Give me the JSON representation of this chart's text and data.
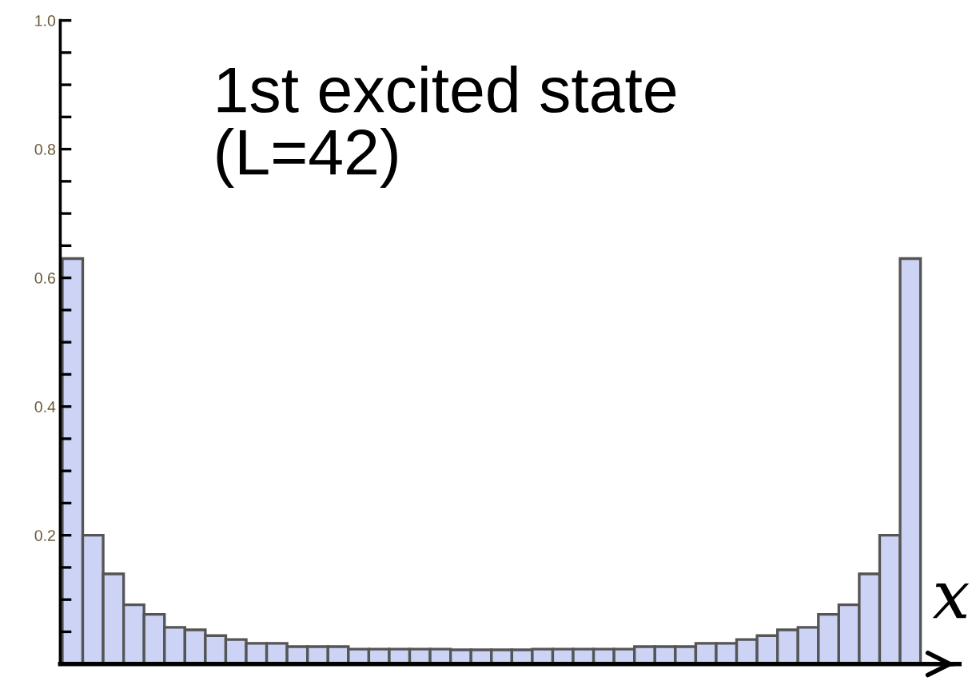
{
  "chart_data": {
    "type": "bar",
    "annotations": [
      "1st excited state\n(L=42)"
    ],
    "xlabel": "x",
    "categories": [
      null,
      null,
      null,
      null,
      null,
      null,
      null,
      null,
      null,
      null,
      null,
      null,
      null,
      null,
      null,
      null,
      null,
      null,
      null,
      null,
      null,
      null,
      null,
      null,
      null,
      null,
      null,
      null,
      null,
      null,
      null,
      null,
      null,
      null,
      null,
      null,
      null,
      null,
      null,
      null,
      null,
      null
    ],
    "values": [
      0.63,
      0.2,
      0.14,
      0.092,
      0.077,
      0.057,
      0.053,
      0.044,
      0.038,
      0.032,
      0.032,
      0.027,
      0.027,
      0.027,
      0.023,
      0.023,
      0.023,
      0.023,
      0.023,
      0.022,
      0.022,
      0.022,
      0.022,
      0.023,
      0.023,
      0.023,
      0.023,
      0.023,
      0.027,
      0.027,
      0.027,
      0.032,
      0.032,
      0.038,
      0.044,
      0.053,
      0.057,
      0.077,
      0.092,
      0.14,
      0.2,
      0.63
    ],
    "color": "#ccd3f4",
    "ylim": [
      0,
      1.0
    ],
    "yticks": [
      {
        "value": 0.05,
        "label": null
      },
      {
        "value": 0.1,
        "label": null
      },
      {
        "value": 0.15,
        "label": null
      },
      0.2,
      {
        "value": 0.25,
        "label": null
      },
      {
        "value": 0.3,
        "label": null
      },
      {
        "value": 0.35,
        "label": null
      },
      0.4,
      {
        "value": 0.45,
        "label": null
      },
      {
        "value": 0.5,
        "label": null
      },
      {
        "value": 0.55,
        "label": null
      },
      0.6,
      {
        "value": 0.65,
        "label": null
      },
      {
        "value": 0.7,
        "label": null
      },
      {
        "value": 0.75,
        "label": null
      },
      0.8,
      {
        "value": 0.85,
        "label": null
      },
      {
        "value": 0.9,
        "label": null
      },
      {
        "value": 0.95,
        "label": null
      },
      {
        "value": 1.0,
        "label": "1.0"
      }
    ],
    "tick_labels": "y",
    "grid": false,
    "legend": false
  }
}
